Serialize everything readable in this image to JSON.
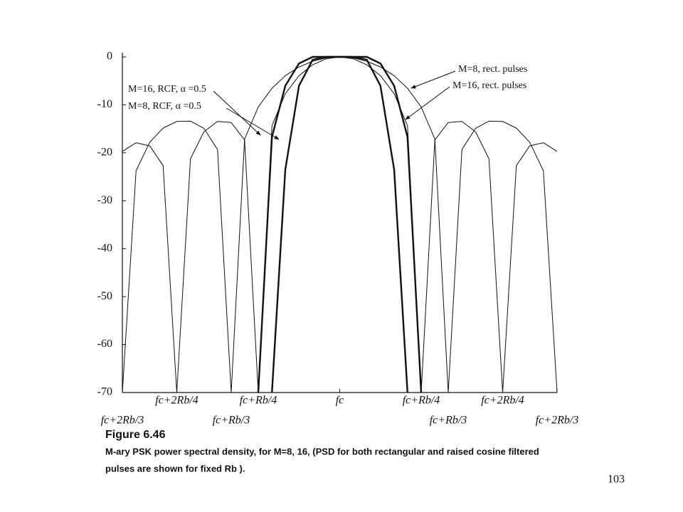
{
  "chart_data": {
    "type": "line",
    "x": [
      -0.667,
      -0.625,
      -0.583,
      -0.542,
      -0.5,
      -0.458,
      -0.417,
      -0.375,
      -0.333,
      -0.292,
      -0.25,
      -0.208,
      -0.167,
      -0.125,
      -0.083,
      -0.042,
      0,
      0.042,
      0.083,
      0.125,
      0.167,
      0.208,
      0.25,
      0.292,
      0.333,
      0.375,
      0.417,
      0.458,
      0.5,
      0.542,
      0.583,
      0.625,
      0.667
    ],
    "series": [
      {
        "name": "M=8, rect. pulses",
        "color": "#111111",
        "line_width": 1,
        "values": [
          -70,
          -23.75,
          -17.81,
          -14.85,
          -13.46,
          -13.4,
          -14.89,
          -19.31,
          -70,
          -17.13,
          -10.45,
          -6.55,
          -3.92,
          -2.11,
          -0.91,
          -0.22,
          0,
          -0.22,
          -0.91,
          -2.11,
          -3.92,
          -6.55,
          -10.45,
          -17.13,
          -70,
          -19.31,
          -14.89,
          -13.4,
          -13.46,
          -14.85,
          -17.81,
          -23.75,
          -70
        ]
      },
      {
        "name": "M=16, rect. pulses",
        "color": "#111111",
        "line_width": 1,
        "values": [
          -19.71,
          -17.9,
          -18.55,
          -22.68,
          -70,
          -21.23,
          -15.63,
          -13.46,
          -13.69,
          -17.3,
          -70,
          -14.38,
          -7.67,
          -3.92,
          -1.65,
          -0.4,
          0,
          -0.4,
          -1.65,
          -3.92,
          -7.67,
          -14.38,
          -70,
          -17.3,
          -13.69,
          -13.46,
          -15.63,
          -21.23,
          -70,
          -22.68,
          -18.55,
          -17.9,
          -19.71
        ]
      },
      {
        "name": "M=16, RCF, α =0.5",
        "color": "#111111",
        "line_width": 2.4,
        "values": [
          null,
          null,
          null,
          null,
          null,
          null,
          null,
          null,
          null,
          null,
          null,
          -70,
          -23.5,
          -6.02,
          -0.6,
          0,
          0,
          0,
          -0.6,
          -6.02,
          -23.5,
          -70,
          null,
          null,
          null,
          null,
          null,
          null,
          null,
          null,
          null,
          null,
          null
        ]
      },
      {
        "name": "M=8, RCF, α =0.5",
        "color": "#111111",
        "line_width": 2.4,
        "values": [
          null,
          null,
          null,
          null,
          null,
          null,
          null,
          null,
          null,
          null,
          -70,
          -16.69,
          -6.02,
          -1.37,
          0,
          0,
          0,
          0,
          0,
          -1.37,
          -6.02,
          -16.69,
          -70,
          null,
          null,
          null,
          null,
          null,
          null,
          null,
          null,
          null,
          null
        ]
      }
    ],
    "xlim": [
      -0.667,
      0.667
    ],
    "xticks": [
      {
        "value": -0.667,
        "label": "fc+2Rb/3"
      },
      {
        "value": -0.5,
        "label": "fc+2Rb/4"
      },
      {
        "value": -0.333,
        "label": "fc+Rb/3"
      },
      {
        "value": -0.25,
        "label": "fc+Rb/4"
      },
      {
        "value": 0,
        "label": "fc"
      },
      {
        "value": 0.25,
        "label": "fc+Rb/4"
      },
      {
        "value": 0.333,
        "label": "fc+Rb/3"
      },
      {
        "value": 0.5,
        "label": "fc+2Rb/4"
      },
      {
        "value": 0.667,
        "label": "fc+2Rb/3"
      }
    ],
    "ylim": [
      -70,
      0
    ],
    "yticks": [
      0,
      -10,
      -20,
      -30,
      -40,
      -50,
      -60,
      -70
    ],
    "grid": false
  },
  "figure": {
    "label": "Figure 6.46",
    "caption_line1": "M-ary PSK power spectral density, for M=8, 16, (PSD for both rectangular and raised cosine filtered",
    "caption_line2": "pulses are shown for fixed Rb )."
  },
  "page_number": "103"
}
